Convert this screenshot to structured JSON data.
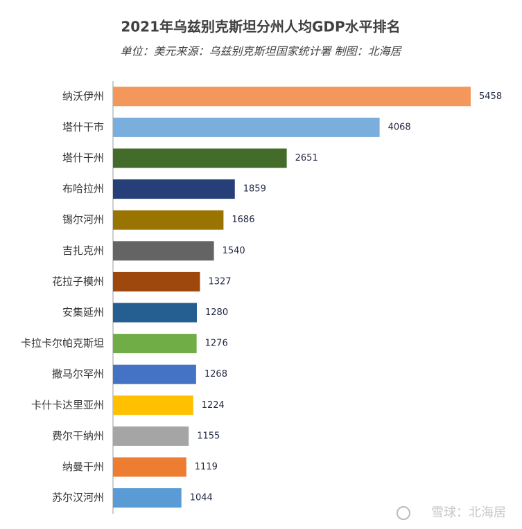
{
  "chart_data": {
    "type": "bar",
    "orientation": "horizontal",
    "title": "2021年乌兹别克斯坦分州人均GDP水平排名",
    "subtitle": "单位：美元来源：乌兹别克斯坦国家统计署 制图：北海居",
    "categories": [
      "纳沃伊州",
      "塔什干市",
      "塔什干州",
      "布哈拉州",
      "锡尔河州",
      "吉扎克州",
      "花拉子模州",
      "安集延州",
      "卡拉卡尔帕克斯坦",
      "撒马尔罕州",
      "卡什卡达里亚州",
      "费尔干纳州",
      "纳曼干州",
      "苏尔汉河州"
    ],
    "values": [
      5458,
      4068,
      2651,
      1859,
      1686,
      1540,
      1327,
      1280,
      1276,
      1268,
      1224,
      1155,
      1119,
      1044
    ],
    "colors": [
      "#f4975a",
      "#7aaedc",
      "#436b2a",
      "#273f79",
      "#9a7400",
      "#646464",
      "#9e480e",
      "#255e91",
      "#70ad47",
      "#4472c4",
      "#ffc000",
      "#a5a5a5",
      "#ed7d31",
      "#5b9bd5"
    ],
    "watermark": "雪球：北海居"
  }
}
